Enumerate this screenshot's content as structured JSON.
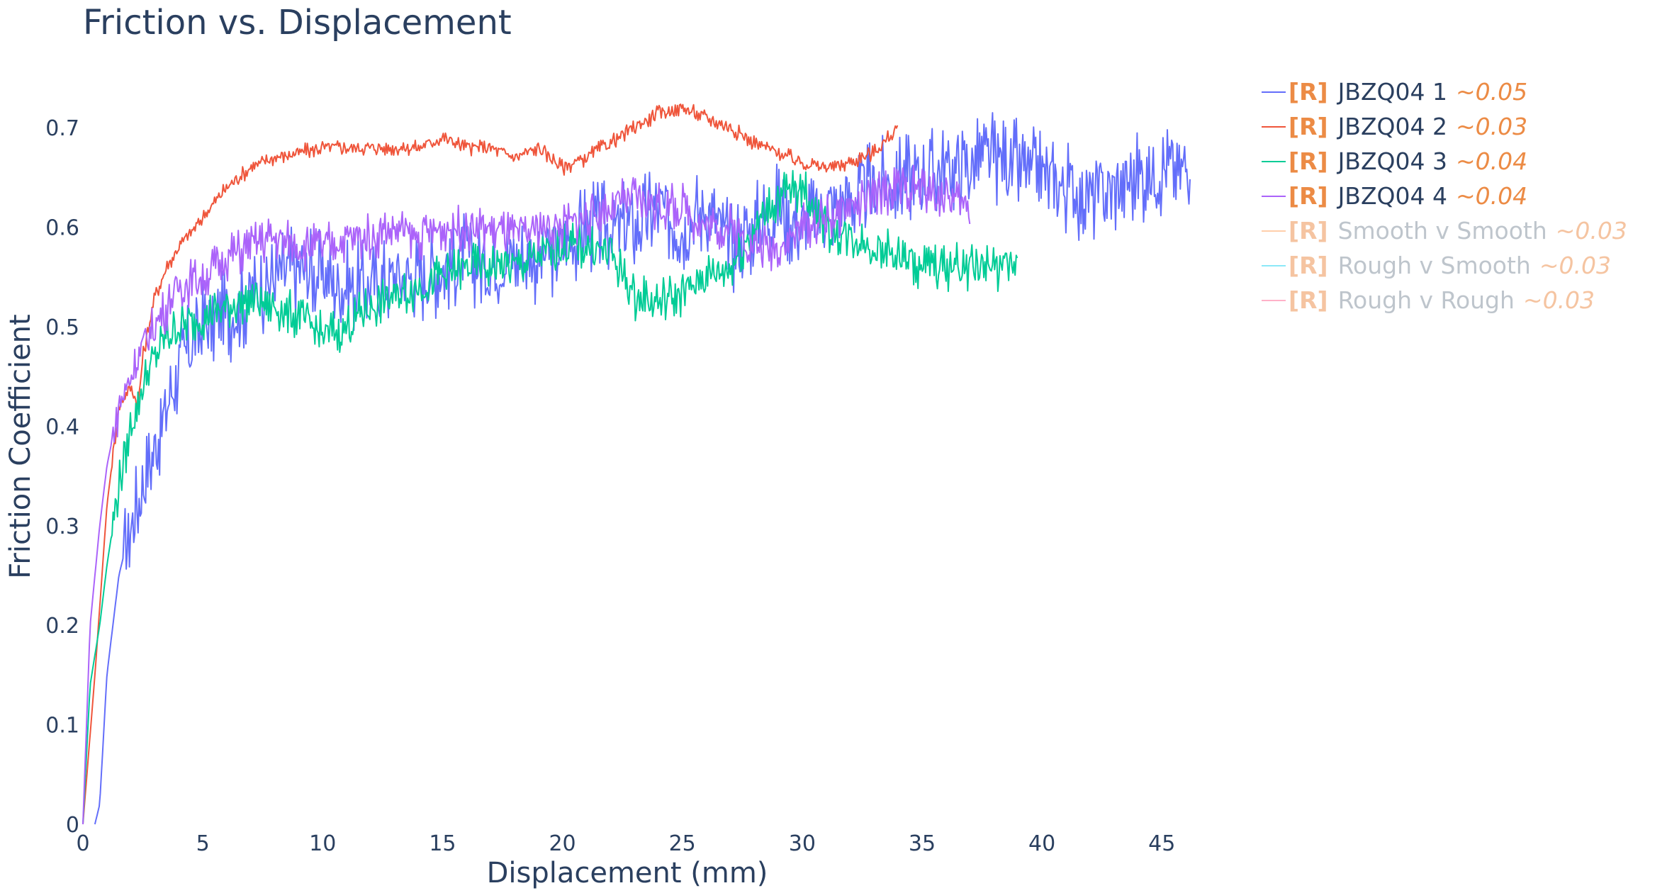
{
  "chart_data": {
    "type": "line",
    "title": "Friction vs. Displacement",
    "xlabel": "Displacement (mm)",
    "ylabel": "Friction Coefficient",
    "xlim": [
      0,
      46.5
    ],
    "ylim": [
      0,
      0.75
    ],
    "xticks": [
      0,
      5,
      10,
      15,
      20,
      25,
      30,
      35,
      40,
      45
    ],
    "yticks": [
      0,
      0.1,
      0.2,
      0.3,
      0.4,
      0.5,
      0.6,
      0.7
    ],
    "grid": false,
    "legend_position": "right",
    "series": [
      {
        "name": "JBZQ04 1",
        "tag": "[R]",
        "value_label": "~0.05",
        "color": "#636efa",
        "visible": true,
        "noise": 0.07,
        "end_x": 46.2,
        "x": [
          0.5,
          0.7,
          1,
          1.5,
          2,
          2.5,
          3,
          3.5,
          4,
          5,
          6,
          7,
          8,
          9,
          10,
          11,
          12,
          13,
          14,
          15,
          16,
          17,
          18,
          19,
          20,
          21,
          22,
          23,
          24,
          25,
          26,
          27,
          28,
          29,
          30,
          31,
          32,
          33,
          34,
          35,
          36,
          37,
          38,
          39,
          40,
          41,
          42,
          43,
          44,
          45,
          46,
          46.2
        ],
        "y": [
          0,
          0.02,
          0.15,
          0.25,
          0.3,
          0.34,
          0.38,
          0.42,
          0.46,
          0.5,
          0.51,
          0.53,
          0.55,
          0.56,
          0.55,
          0.54,
          0.54,
          0.55,
          0.55,
          0.56,
          0.57,
          0.56,
          0.57,
          0.57,
          0.58,
          0.6,
          0.6,
          0.6,
          0.62,
          0.6,
          0.62,
          0.58,
          0.6,
          0.62,
          0.6,
          0.62,
          0.63,
          0.64,
          0.65,
          0.65,
          0.66,
          0.66,
          0.67,
          0.66,
          0.65,
          0.64,
          0.63,
          0.64,
          0.65,
          0.66,
          0.66,
          0.67
        ]
      },
      {
        "name": "JBZQ04 2",
        "tag": "[R]",
        "value_label": "~0.03",
        "color": "#ef553b",
        "visible": true,
        "noise": 0.012,
        "end_x": 34,
        "x": [
          0,
          0.5,
          1,
          1.5,
          2,
          2.3,
          2.5,
          3,
          3.5,
          4,
          5,
          6,
          7,
          8,
          9,
          10,
          11,
          12,
          13,
          14,
          15,
          16,
          17,
          18,
          19,
          20,
          21,
          22,
          23,
          24,
          25,
          26,
          27,
          28,
          29,
          30,
          31,
          32,
          33,
          34
        ],
        "y": [
          0,
          0.15,
          0.32,
          0.42,
          0.44,
          0.42,
          0.47,
          0.53,
          0.56,
          0.58,
          0.61,
          0.64,
          0.66,
          0.67,
          0.675,
          0.68,
          0.68,
          0.68,
          0.68,
          0.68,
          0.69,
          0.68,
          0.68,
          0.67,
          0.68,
          0.66,
          0.67,
          0.685,
          0.7,
          0.715,
          0.72,
          0.71,
          0.7,
          0.685,
          0.675,
          0.665,
          0.66,
          0.665,
          0.675,
          0.7
        ]
      },
      {
        "name": "JBZQ04 3",
        "tag": "[R]",
        "value_label": "~0.04",
        "color": "#00cc96",
        "visible": true,
        "noise": 0.035,
        "end_x": 39,
        "x": [
          0,
          0.3,
          0.7,
          1,
          1.5,
          2,
          2.5,
          3,
          3.5,
          4,
          5,
          6,
          7,
          8,
          9,
          10,
          11,
          12,
          13,
          14,
          15,
          16,
          17,
          18,
          19,
          20,
          21,
          22,
          23,
          24,
          25,
          26,
          27,
          28,
          29,
          30,
          31,
          32,
          33,
          34,
          35,
          36,
          37,
          38,
          39
        ],
        "y": [
          0,
          0.14,
          0.2,
          0.26,
          0.34,
          0.4,
          0.44,
          0.47,
          0.49,
          0.5,
          0.51,
          0.52,
          0.53,
          0.52,
          0.51,
          0.49,
          0.5,
          0.52,
          0.53,
          0.54,
          0.55,
          0.56,
          0.56,
          0.56,
          0.57,
          0.58,
          0.58,
          0.575,
          0.53,
          0.525,
          0.535,
          0.55,
          0.56,
          0.6,
          0.63,
          0.64,
          0.6,
          0.59,
          0.58,
          0.57,
          0.56,
          0.56,
          0.56,
          0.56,
          0.56
        ]
      },
      {
        "name": "JBZQ04 4",
        "tag": "[R]",
        "value_label": "~0.04",
        "color": "#ab63fa",
        "visible": true,
        "noise": 0.035,
        "end_x": 37,
        "x": [
          0,
          0.3,
          0.7,
          1,
          1.5,
          2,
          2.5,
          3,
          3.5,
          4,
          5,
          6,
          7,
          8,
          9,
          10,
          11,
          12,
          13,
          14,
          15,
          16,
          17,
          18,
          19,
          20,
          21,
          22,
          23,
          24,
          25,
          26,
          27,
          28,
          29,
          30,
          31,
          32,
          33,
          34,
          35,
          36,
          37
        ],
        "y": [
          0,
          0.2,
          0.3,
          0.36,
          0.42,
          0.45,
          0.48,
          0.5,
          0.52,
          0.54,
          0.55,
          0.57,
          0.58,
          0.59,
          0.58,
          0.58,
          0.59,
          0.59,
          0.6,
          0.59,
          0.6,
          0.6,
          0.6,
          0.59,
          0.6,
          0.6,
          0.61,
          0.62,
          0.63,
          0.62,
          0.62,
          0.6,
          0.6,
          0.58,
          0.58,
          0.6,
          0.61,
          0.62,
          0.63,
          0.64,
          0.64,
          0.63,
          0.62
        ]
      },
      {
        "name": "Smooth v Smooth",
        "tag": "[R]",
        "value_label": "~0.03",
        "color": "#ffa15a",
        "visible": false
      },
      {
        "name": "Rough v Smooth",
        "tag": "[R]",
        "value_label": "~0.03",
        "color": "#19d3f3",
        "visible": false
      },
      {
        "name": "Rough v Rough",
        "tag": "[R]",
        "value_label": "~0.03",
        "color": "#ff6692",
        "visible": false
      }
    ]
  }
}
